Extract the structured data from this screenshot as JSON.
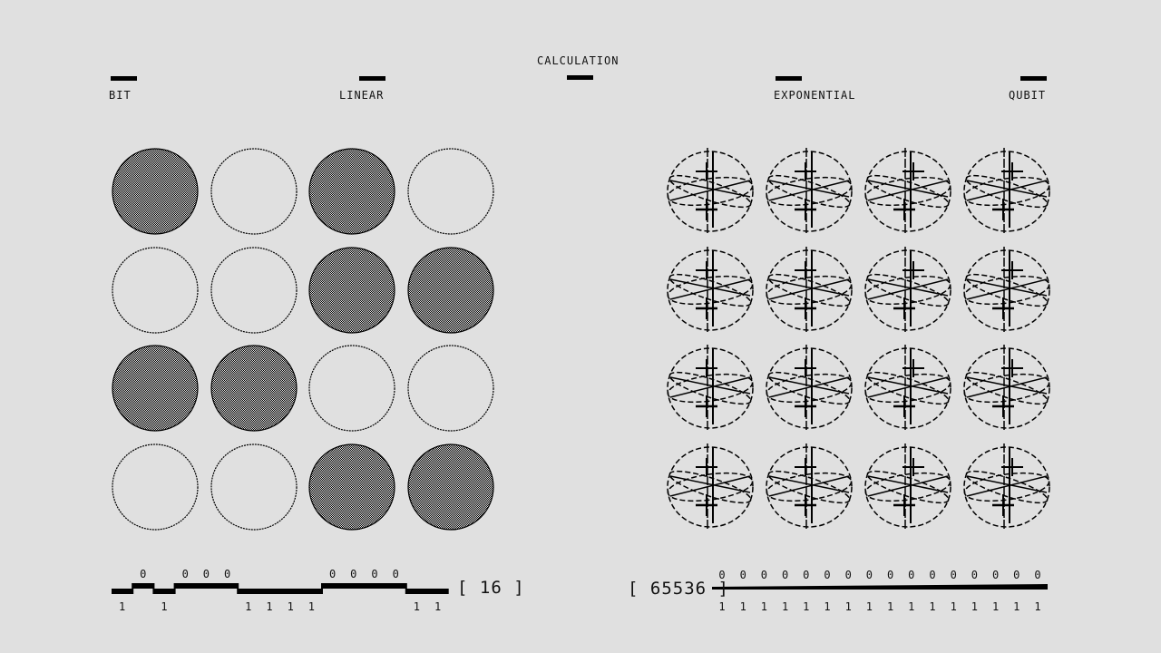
{
  "header": {
    "center_title": "CALCULATION",
    "left_labels": [
      "BIT",
      "LINEAR"
    ],
    "right_labels": [
      "EXPONENTIAL",
      "QUBIT"
    ]
  },
  "bit_panel": {
    "bits": [
      1,
      0,
      1,
      0,
      0,
      0,
      1,
      1,
      1,
      1,
      0,
      0,
      0,
      0,
      1,
      1
    ],
    "count_display": "[ 16 ]",
    "fill_pattern": "checkered",
    "color": "#000000"
  },
  "qubit_panel": {
    "qubit_count": 16,
    "count_display": "[ 65536 ]",
    "top_labels": [
      "0",
      "0",
      "0",
      "0",
      "0",
      "0",
      "0",
      "0",
      "0",
      "0",
      "0",
      "0",
      "0",
      "0",
      "0",
      "0"
    ],
    "bottom_labels": [
      "1",
      "1",
      "1",
      "1",
      "1",
      "1",
      "1",
      "1",
      "1",
      "1",
      "1",
      "1",
      "1",
      "1",
      "1",
      "1"
    ],
    "icon": "bloch-sphere-icon"
  },
  "colors": {
    "background": "#e0e0e0",
    "ink": "#000000"
  }
}
